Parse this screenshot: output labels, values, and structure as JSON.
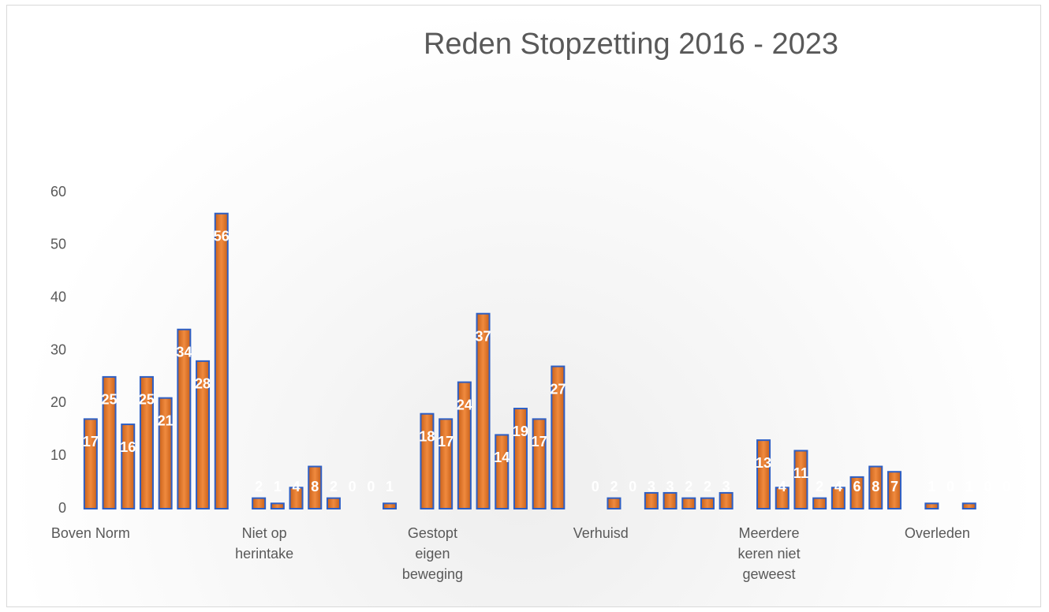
{
  "chart_data": {
    "type": "bar",
    "title": "Reden Stopzetting 2016 - 2023",
    "categories": [
      "Boven Norm",
      null,
      null,
      null,
      null,
      null,
      null,
      null,
      null,
      "Niet op herintake",
      null,
      null,
      null,
      null,
      null,
      null,
      null,
      null,
      "Gestopt eigen beweging",
      null,
      null,
      null,
      null,
      null,
      null,
      null,
      null,
      "Verhuisd",
      null,
      null,
      null,
      null,
      null,
      null,
      null,
      null,
      "Meerdere keren niet geweest",
      null,
      null,
      null,
      null,
      null,
      null,
      null,
      null,
      "Overleden",
      null,
      null,
      null,
      null
    ],
    "values": [
      17,
      25,
      16,
      25,
      21,
      34,
      28,
      56,
      null,
      2,
      1,
      4,
      8,
      2,
      0,
      0,
      1,
      null,
      18,
      17,
      24,
      37,
      14,
      19,
      17,
      27,
      null,
      0,
      2,
      0,
      3,
      3,
      2,
      2,
      3,
      null,
      13,
      4,
      11,
      2,
      4,
      6,
      8,
      7,
      null,
      1,
      0,
      1,
      0,
      0
    ],
    "color": "#ed7d31",
    "border_color": "#2e5fc4",
    "ylim": [
      0,
      60
    ],
    "yticks": [
      0,
      10,
      20,
      30,
      40,
      50,
      60
    ],
    "grid": false
  }
}
